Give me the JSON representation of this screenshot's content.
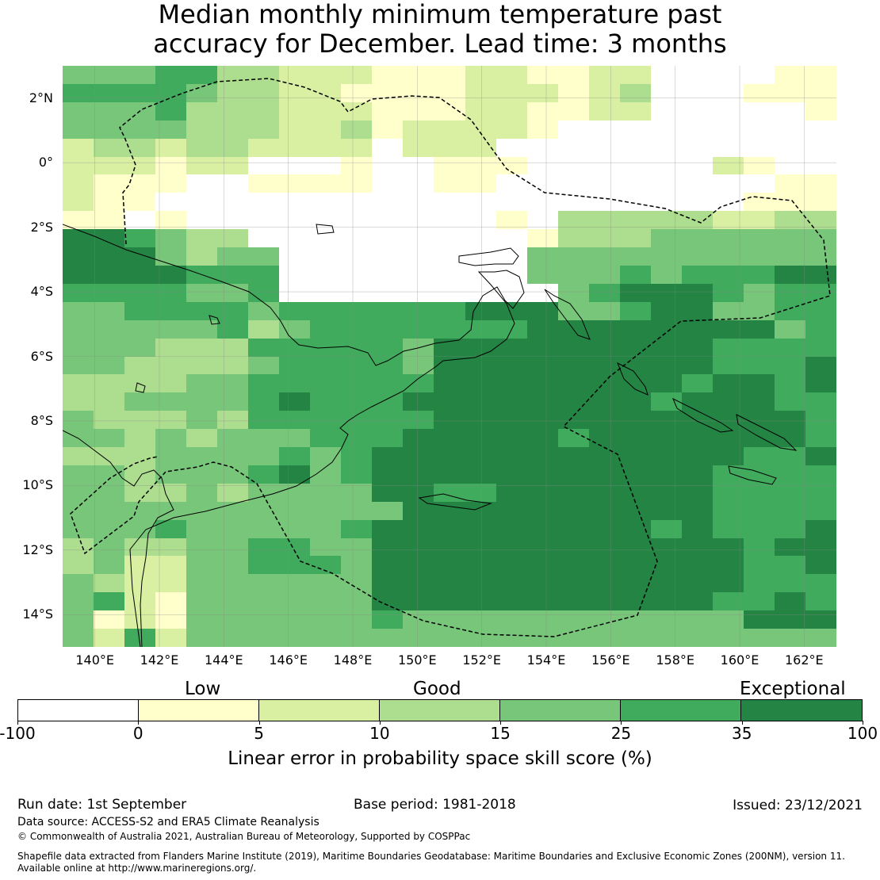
{
  "title": {
    "line1": "Median monthly minimum temperature past",
    "line2": "accuracy for December. Lead time: 3 months"
  },
  "map": {
    "lon_ticks": [
      "140°E",
      "142°E",
      "144°E",
      "146°E",
      "148°E",
      "150°E",
      "152°E",
      "154°E",
      "156°E",
      "158°E",
      "160°E",
      "162°E"
    ],
    "lat_ticks": [
      "2°N",
      "0°",
      "2°S",
      "4°S",
      "6°S",
      "8°S",
      "10°S",
      "12°S",
      "14°S"
    ],
    "lon_range": [
      139.0,
      163.0
    ],
    "lat_range": [
      -15.0,
      3.0
    ],
    "lon_tick_values": [
      140,
      142,
      144,
      146,
      148,
      150,
      152,
      154,
      156,
      158,
      160,
      162
    ],
    "lat_tick_values": [
      2,
      0,
      -2,
      -4,
      -6,
      -8,
      -10,
      -12,
      -14
    ],
    "gridlines": true,
    "rows": [
      "4445533222111221122000011",
      "5555433221111222123000111",
      "4445333222111221122000001",
      "4444333223122221000000000",
      "2332332222022200000000000",
      "2221220001001110000002100",
      "2111001111001100000000011",
      "2110000000000000000000111",
      "1101000000000010333332233",
      "6654330000000001333444444",
      "6664344000000004444444444",
      "6666555000000004445455566",
      "5555445000000000456665455",
      "4455554555555666445664455",
      "4444453455555556666666645",
      "4443335555546666666665555",
      "4433334555546666666665556",
      "3333445555556666666656656",
      "3344445655566666666566655",
      "4333435555556666666666665",
      "4434344455566666566666665",
      "3334444545666666666666556",
      "4434445645666666666665555",
      "4433434444665566666665555",
      "4444444444466666666665555",
      "4445444445666666666565556",
      "3433445544666666666666566",
      "3422445554666666666666556",
      "4322444444666666666666555",
      "4521444444666666666665565",
      "4121444444544444444444666",
      "4252444444444444444444444"
    ]
  },
  "colorbar": {
    "category_labels": [
      "Low",
      "Good",
      "Exceptional"
    ],
    "tick_labels": [
      "-100",
      "0",
      "5",
      "10",
      "15",
      "25",
      "35",
      "100"
    ],
    "colors": [
      "#ffffff",
      "#ffffcc",
      "#d9f0a3",
      "#addd8e",
      "#78c679",
      "#41ab5d",
      "#238443"
    ],
    "label": "Linear error in probability space skill score (%)"
  },
  "footer": {
    "run_date": "Run date: 1st September",
    "base_period": "Base period: 1981-2018",
    "issued": "Issued: 23/12/2021",
    "data_source": "Data source: ACCESS-S2 and ERA5 Climate Reanalysis",
    "copyright": "© Commonwealth of Australia 2021, Australian Bureau of Meteorology, Supported by COSPPac",
    "shapefile_line1": "Shapefile data extracted from Flanders Marine Institute (2019), Maritime Boundaries Geodatabase: Maritime Boundaries and Exclusive Economic Zones (200NM), version 11.",
    "shapefile_line2": "Available online at http://www.marineregions.org/."
  }
}
